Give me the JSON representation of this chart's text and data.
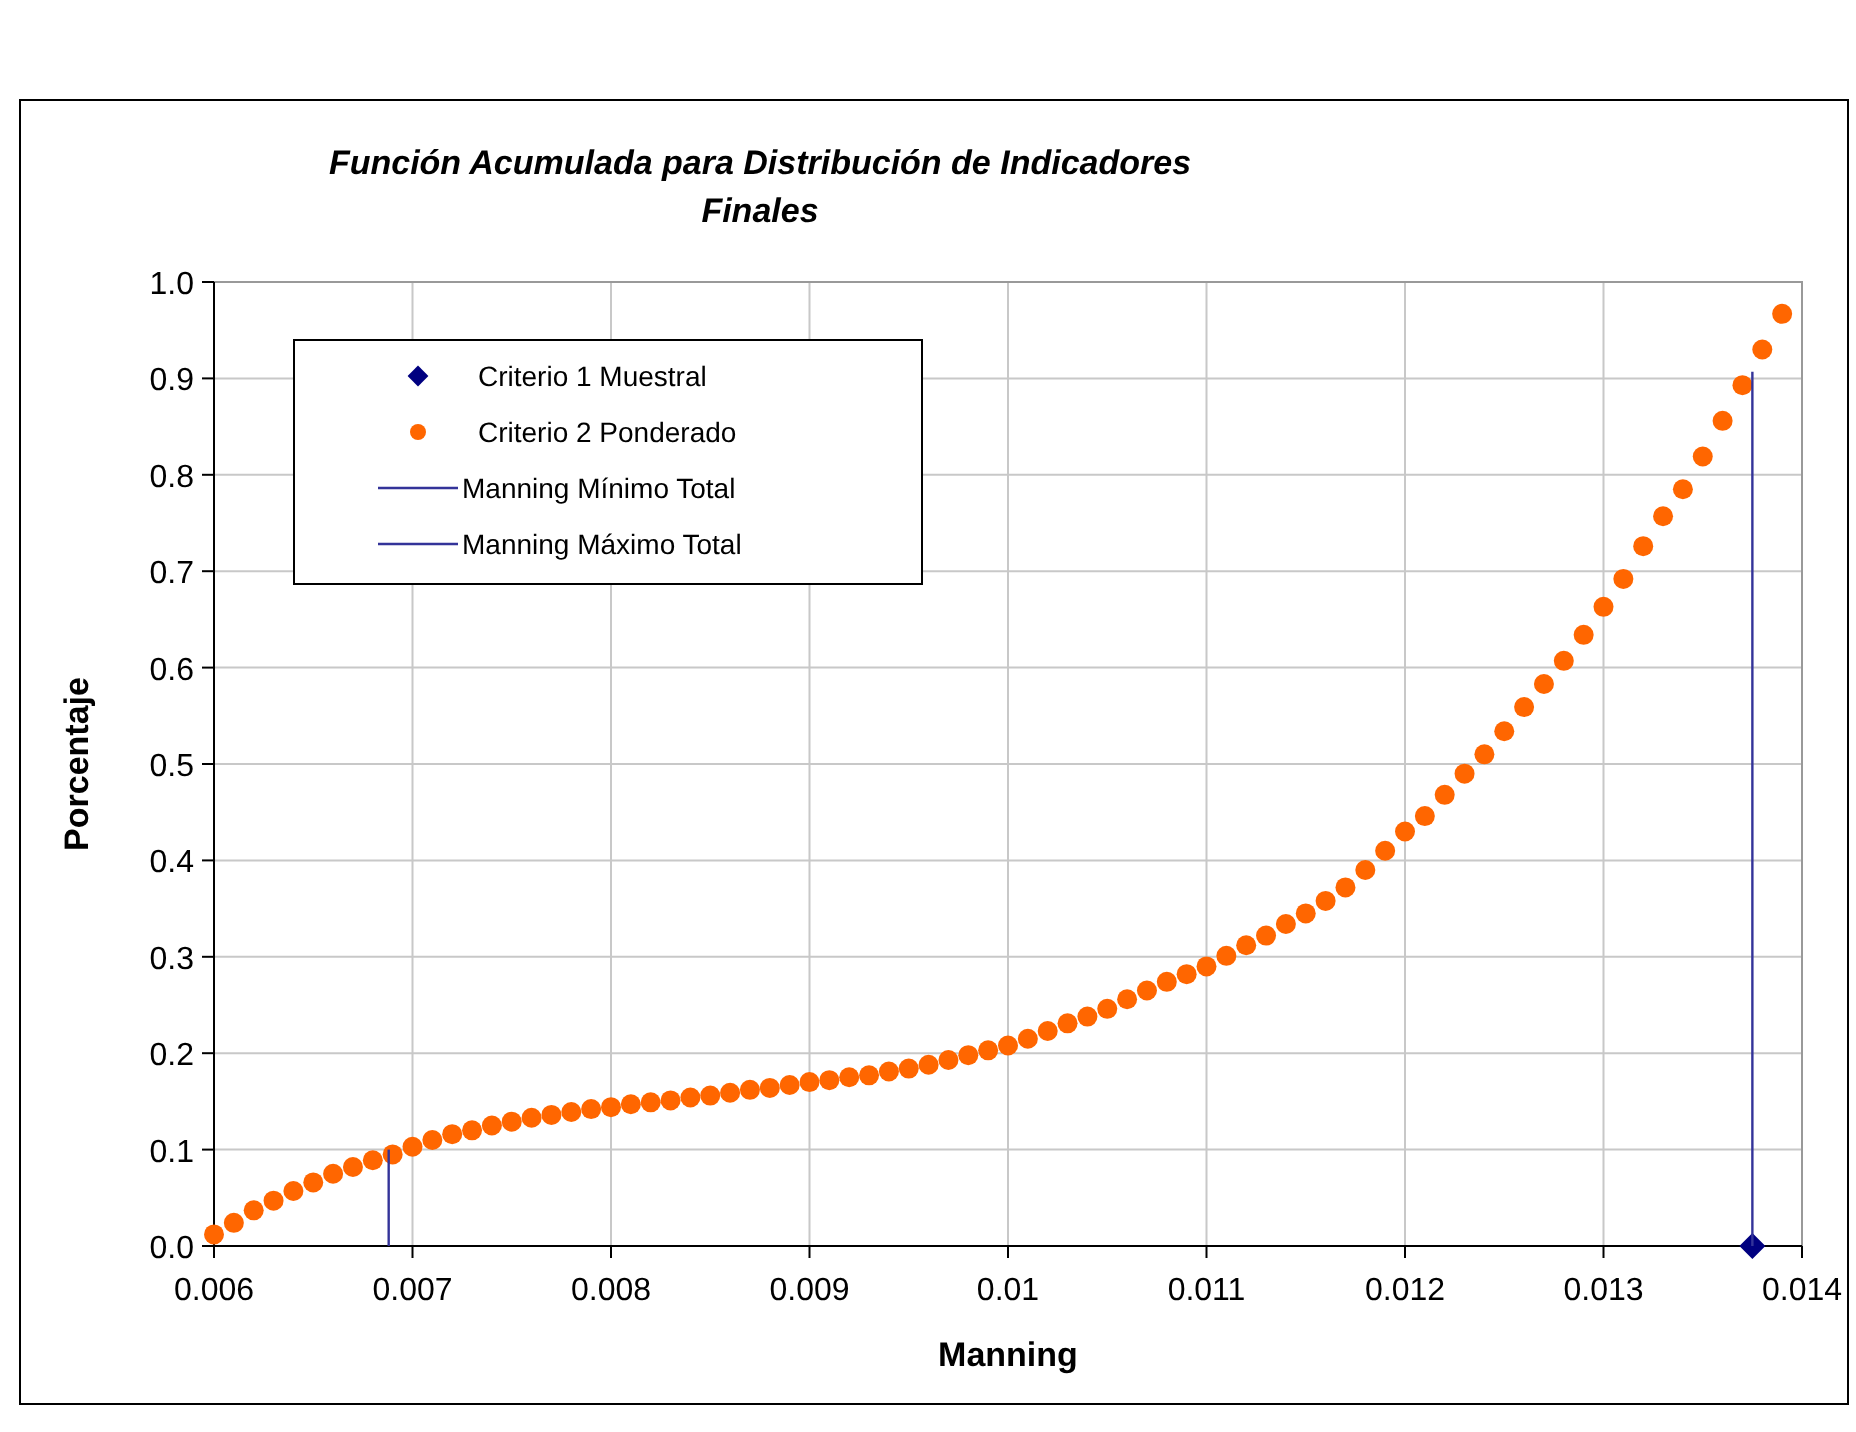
{
  "chart_data": {
    "type": "scatter",
    "title": "Función Acumulada para Distribución de Indicadores Finales",
    "xlabel": "Manning",
    "ylabel": "Porcentaje",
    "xlim": [
      0.006,
      0.014
    ],
    "xticks": [
      0.006,
      0.007,
      0.008,
      0.009,
      0.01,
      0.011,
      0.012,
      0.013,
      0.014
    ],
    "ylim": [
      0,
      1
    ],
    "yticks": [
      {
        "value": 0,
        "label": "0.0"
      },
      {
        "value": 0.1,
        "label": "0.1"
      },
      {
        "value": 0.2,
        "label": "0.2"
      },
      {
        "value": 0.3,
        "label": "0.3"
      },
      {
        "value": 0.4,
        "label": "0.4"
      },
      {
        "value": 0.5,
        "label": "0.5"
      },
      {
        "value": 0.6,
        "label": "0.6"
      },
      {
        "value": 0.7,
        "label": "0.7"
      },
      {
        "value": 0.8,
        "label": "0.8"
      },
      {
        "value": 0.9,
        "label": "0.9"
      },
      {
        "value": 1,
        "label": "1.0"
      }
    ],
    "grid": true,
    "legend": "top left",
    "series": [
      {
        "name": "Criterio 1 Muestral",
        "marker": "diamond",
        "color": "#000080",
        "x": [
          0.01375
        ],
        "values": [
          0
        ]
      },
      {
        "name": "Criterio 2 Ponderado",
        "marker": "circle",
        "color": "#ff6600",
        "x": [
          0.006,
          0.0061,
          0.0062,
          0.0063,
          0.0064,
          0.0065,
          0.0066,
          0.0067,
          0.0068,
          0.0069,
          0.007,
          0.0071,
          0.0072,
          0.0073,
          0.0074,
          0.0075,
          0.0076,
          0.0077,
          0.0078,
          0.0079,
          0.008,
          0.0081,
          0.0082,
          0.0083,
          0.0084,
          0.0085,
          0.0086,
          0.0087,
          0.0088,
          0.0089,
          0.009,
          0.0091,
          0.0092,
          0.0093,
          0.0094,
          0.0095,
          0.0096,
          0.0097,
          0.0098,
          0.0099,
          0.01,
          0.0101,
          0.0102,
          0.0103,
          0.0104,
          0.0105,
          0.0106,
          0.0107,
          0.0108,
          0.0109,
          0.011,
          0.0111,
          0.0112,
          0.0113,
          0.0114,
          0.0115,
          0.0116,
          0.0117,
          0.0118,
          0.0119,
          0.012,
          0.0121,
          0.0122,
          0.0123,
          0.0124,
          0.0125,
          0.0126,
          0.0127,
          0.0128,
          0.0129,
          0.013,
          0.0131,
          0.0132,
          0.0133,
          0.0134,
          0.0135,
          0.0136,
          0.0137,
          0.0138,
          0.0139
        ],
        "values": [
          0.012,
          0.024,
          0.037,
          0.047,
          0.057,
          0.066,
          0.075,
          0.082,
          0.089,
          0.095,
          0.103,
          0.11,
          0.116,
          0.12,
          0.125,
          0.129,
          0.133,
          0.136,
          0.139,
          0.142,
          0.144,
          0.147,
          0.149,
          0.151,
          0.154,
          0.156,
          0.159,
          0.162,
          0.164,
          0.167,
          0.17,
          0.172,
          0.175,
          0.177,
          0.181,
          0.184,
          0.188,
          0.193,
          0.198,
          0.203,
          0.208,
          0.215,
          0.223,
          0.231,
          0.238,
          0.246,
          0.256,
          0.265,
          0.274,
          0.282,
          0.29,
          0.301,
          0.312,
          0.322,
          0.334,
          0.345,
          0.358,
          0.372,
          0.39,
          0.41,
          0.43,
          0.446,
          0.468,
          0.49,
          0.51,
          0.534,
          0.559,
          0.583,
          0.607,
          0.634,
          0.663,
          0.692,
          0.726,
          0.757,
          0.785,
          0.819,
          0.856,
          0.893,
          0.93,
          0.967
        ]
      },
      {
        "name": "Manning Mínimo Total",
        "type": "line",
        "marker": "none",
        "color": "#333399",
        "x": [
          0.00688,
          0.00688
        ],
        "values": [
          0,
          0.1
        ]
      },
      {
        "name": "Manning Máximo Total",
        "type": "line",
        "marker": "none",
        "color": "#333399",
        "x": [
          0.01375,
          0.01375
        ],
        "values": [
          0,
          0.907
        ]
      }
    ]
  }
}
